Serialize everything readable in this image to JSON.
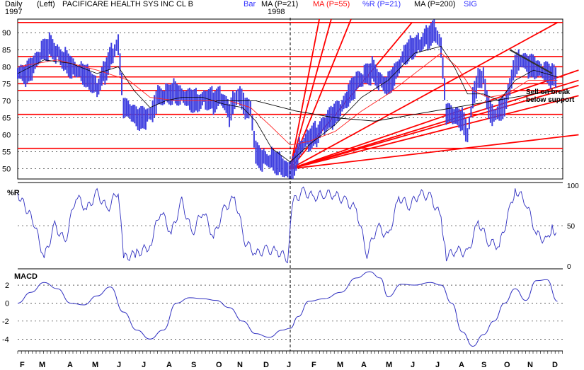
{
  "header": {
    "period": "Daily",
    "axis_side": "(Left)",
    "ticker": "PACIFICARE HEALTH SYS INC CL B",
    "year_start": "1997",
    "year_mid": "1998",
    "legend": [
      {
        "label": "Bar",
        "color": "#3030ff"
      },
      {
        "label": "MA (P=21)",
        "color": "#000000"
      },
      {
        "label": "MA (P=55)",
        "color": "#ff1010"
      },
      {
        "label": "%R (P=21)",
        "color": "#3030ff"
      },
      {
        "label": "MA (P=200)",
        "color": "#000000"
      },
      {
        "label": "SIG",
        "color": "#3030ff"
      }
    ]
  },
  "chart_data": [
    {
      "type": "bar",
      "panel": "price",
      "ylim": [
        47,
        94
      ],
      "yticks": [
        50,
        55,
        60,
        65,
        70,
        75,
        80,
        85,
        90
      ],
      "support_resistance": [
        56,
        66,
        73,
        75,
        77,
        80,
        83,
        93
      ],
      "fan_origin": {
        "x": 10.3,
        "y": 50
      },
      "fan_targets": [
        {
          "x": 11.4,
          "y": 94
        },
        {
          "x": 11.85,
          "y": 94
        },
        {
          "x": 12.6,
          "y": 94
        },
        {
          "x": 14.9,
          "y": 93
        },
        {
          "x": 20.4,
          "y": 93
        },
        {
          "x": 21.2,
          "y": 79
        },
        {
          "x": 21.2,
          "y": 76
        },
        {
          "x": 21.2,
          "y": 74.5
        },
        {
          "x": 21.2,
          "y": 71.5
        },
        {
          "x": 21.2,
          "y": 60
        }
      ],
      "downtrend_line": [
        {
          "x": 18.6,
          "y": 85
        },
        {
          "x": 20.2,
          "y": 78
        }
      ],
      "annotation": "Sell on break\nbelow support",
      "price": [
        [
          0,
          78
        ],
        [
          0.3,
          77
        ],
        [
          0.6,
          80
        ],
        [
          0.9,
          84
        ],
        [
          1.2,
          86
        ],
        [
          1.5,
          84
        ],
        [
          1.8,
          82
        ],
        [
          2.1,
          80
        ],
        [
          2.4,
          79
        ],
        [
          2.7,
          77
        ],
        [
          3.0,
          74
        ],
        [
          3.3,
          79
        ],
        [
          3.6,
          84
        ],
        [
          3.8,
          87
        ],
        [
          4.0,
          68
        ],
        [
          4.3,
          66
        ],
        [
          4.6,
          64
        ],
        [
          4.9,
          65
        ],
        [
          5.1,
          66
        ],
        [
          5.3,
          71
        ],
        [
          5.6,
          72
        ],
        [
          5.9,
          73
        ],
        [
          6.2,
          72
        ],
        [
          6.5,
          71
        ],
        [
          6.8,
          70
        ],
        [
          7.1,
          71
        ],
        [
          7.4,
          70
        ],
        [
          7.7,
          71
        ],
        [
          8.0,
          66
        ],
        [
          8.2,
          70
        ],
        [
          8.4,
          71
        ],
        [
          8.6,
          67
        ],
        [
          8.8,
          67
        ],
        [
          9.0,
          54
        ],
        [
          9.3,
          53
        ],
        [
          9.6,
          53
        ],
        [
          9.9,
          52
        ],
        [
          10.2,
          50
        ],
        [
          10.4,
          51
        ],
        [
          10.7,
          57
        ],
        [
          11.0,
          59
        ],
        [
          11.3,
          60
        ],
        [
          11.6,
          63
        ],
        [
          11.9,
          65
        ],
        [
          12.2,
          67
        ],
        [
          12.5,
          71
        ],
        [
          12.8,
          75
        ],
        [
          13.1,
          77
        ],
        [
          13.4,
          79
        ],
        [
          13.7,
          76
        ],
        [
          14.0,
          75
        ],
        [
          14.3,
          79
        ],
        [
          14.6,
          84
        ],
        [
          14.9,
          86
        ],
        [
          15.2,
          87
        ],
        [
          15.5,
          89
        ],
        [
          15.8,
          90
        ],
        [
          16.0,
          86
        ],
        [
          16.2,
          66
        ],
        [
          16.5,
          65
        ],
        [
          16.8,
          64
        ],
        [
          17.0,
          59
        ],
        [
          17.2,
          70
        ],
        [
          17.4,
          76
        ],
        [
          17.6,
          77
        ],
        [
          17.8,
          68
        ],
        [
          18.0,
          66
        ],
        [
          18.2,
          68
        ],
        [
          18.4,
          69
        ],
        [
          18.6,
          75
        ],
        [
          18.8,
          81
        ],
        [
          19.0,
          82
        ],
        [
          19.3,
          80
        ],
        [
          19.6,
          79
        ],
        [
          19.9,
          78
        ],
        [
          20.2,
          77
        ],
        [
          20.4,
          76
        ]
      ],
      "ma_black_21": [
        [
          0,
          78
        ],
        [
          1,
          82
        ],
        [
          2,
          81
        ],
        [
          3,
          78
        ],
        [
          3.8,
          80
        ],
        [
          4.4,
          73
        ],
        [
          5.0,
          68
        ],
        [
          5.6,
          70
        ],
        [
          6.2,
          71
        ],
        [
          7.0,
          71
        ],
        [
          7.8,
          69
        ],
        [
          8.5,
          68
        ],
        [
          9.0,
          64
        ],
        [
          9.6,
          56
        ],
        [
          10.3,
          52
        ],
        [
          11,
          57
        ],
        [
          12,
          63
        ],
        [
          13,
          71
        ],
        [
          14,
          76
        ],
        [
          15,
          84
        ],
        [
          16,
          86
        ],
        [
          16.5,
          80
        ],
        [
          17,
          72
        ],
        [
          17.6,
          72
        ],
        [
          18.2,
          70
        ],
        [
          18.8,
          76
        ],
        [
          19.5,
          79
        ],
        [
          20.4,
          77
        ]
      ],
      "ma_red_55": [
        [
          0,
          80
        ],
        [
          1.5,
          82
        ],
        [
          3,
          79
        ],
        [
          4.2,
          76
        ],
        [
          5,
          71
        ],
        [
          6,
          70
        ],
        [
          7,
          70
        ],
        [
          8,
          70
        ],
        [
          8.8,
          68
        ],
        [
          9.5,
          63
        ],
        [
          10.3,
          57
        ],
        [
          11,
          58
        ],
        [
          12,
          61
        ],
        [
          13,
          67
        ],
        [
          14,
          72
        ],
        [
          15,
          78
        ],
        [
          16,
          84
        ],
        [
          16.6,
          80
        ],
        [
          17.2,
          73
        ],
        [
          17.8,
          71
        ],
        [
          18.5,
          72
        ],
        [
          19.3,
          76
        ],
        [
          20.4,
          76
        ]
      ],
      "ma_black_200": [
        [
          7.5,
          70
        ],
        [
          9,
          70
        ],
        [
          10.5,
          67
        ],
        [
          12,
          65
        ],
        [
          13.5,
          64
        ],
        [
          15,
          66
        ],
        [
          16.5,
          68
        ],
        [
          18,
          70
        ],
        [
          19.5,
          72
        ],
        [
          20.4,
          73
        ]
      ]
    },
    {
      "type": "line",
      "panel": "%R",
      "title": "%R",
      "ylim": [
        0,
        100
      ],
      "yticks": [
        0,
        50,
        100
      ],
      "values": [
        [
          0,
          90
        ],
        [
          0.6,
          55
        ],
        [
          1.0,
          10
        ],
        [
          1.4,
          50
        ],
        [
          1.8,
          30
        ],
        [
          2.2,
          88
        ],
        [
          2.6,
          70
        ],
        [
          3.0,
          90
        ],
        [
          3.4,
          70
        ],
        [
          3.8,
          95
        ],
        [
          4.0,
          10
        ],
        [
          4.5,
          15
        ],
        [
          5.0,
          25
        ],
        [
          5.4,
          70
        ],
        [
          5.8,
          40
        ],
        [
          6.2,
          80
        ],
        [
          6.6,
          40
        ],
        [
          7.0,
          70
        ],
        [
          7.4,
          35
        ],
        [
          7.8,
          70
        ],
        [
          8.2,
          85
        ],
        [
          8.6,
          30
        ],
        [
          9.0,
          15
        ],
        [
          9.4,
          20
        ],
        [
          9.8,
          18
        ],
        [
          10.2,
          10
        ],
        [
          10.4,
          80
        ],
        [
          10.8,
          92
        ],
        [
          11.2,
          85
        ],
        [
          11.6,
          90
        ],
        [
          12.0,
          88
        ],
        [
          12.4,
          80
        ],
        [
          12.8,
          70
        ],
        [
          13.2,
          15
        ],
        [
          13.6,
          50
        ],
        [
          14.0,
          35
        ],
        [
          14.4,
          85
        ],
        [
          14.8,
          75
        ],
        [
          15.2,
          90
        ],
        [
          15.6,
          85
        ],
        [
          16.0,
          60
        ],
        [
          16.2,
          12
        ],
        [
          16.6,
          20
        ],
        [
          17.0,
          15
        ],
        [
          17.4,
          55
        ],
        [
          17.8,
          30
        ],
        [
          18.2,
          25
        ],
        [
          18.6,
          70
        ],
        [
          18.8,
          95
        ],
        [
          19.2,
          80
        ],
        [
          19.6,
          40
        ],
        [
          20.0,
          30
        ],
        [
          20.2,
          50
        ],
        [
          20.4,
          35
        ]
      ]
    },
    {
      "type": "line",
      "panel": "MACD",
      "title": "MACD",
      "ylim": [
        -5,
        3.5
      ],
      "yticks": [
        -4,
        -2,
        0,
        2
      ],
      "values": [
        [
          0,
          0
        ],
        [
          0.5,
          1.2
        ],
        [
          1,
          2.3
        ],
        [
          1.5,
          1.6
        ],
        [
          2,
          0
        ],
        [
          2.5,
          -0.2
        ],
        [
          3,
          0.8
        ],
        [
          3.5,
          1.8
        ],
        [
          4,
          -1
        ],
        [
          4.5,
          -3
        ],
        [
          5,
          -4
        ],
        [
          5.5,
          -3
        ],
        [
          6,
          0
        ],
        [
          6.5,
          0.6
        ],
        [
          7,
          0.5
        ],
        [
          7.5,
          0.3
        ],
        [
          8,
          -0.5
        ],
        [
          8.5,
          -2
        ],
        [
          9,
          -3.4
        ],
        [
          9.5,
          -3.8
        ],
        [
          10,
          -3
        ],
        [
          10.3,
          -2.8
        ],
        [
          10.6,
          -1.5
        ],
        [
          11,
          0.2
        ],
        [
          11.6,
          0.5
        ],
        [
          12.2,
          1.2
        ],
        [
          12.8,
          2.8
        ],
        [
          13.3,
          3.5
        ],
        [
          13.7,
          2.8
        ],
        [
          14.0,
          0.7
        ],
        [
          14.5,
          2.1
        ],
        [
          15.0,
          2.0
        ],
        [
          15.6,
          2.3
        ],
        [
          16.0,
          2.0
        ],
        [
          16.4,
          0
        ],
        [
          16.8,
          -3.2
        ],
        [
          17.2,
          -4.8
        ],
        [
          17.6,
          -3.5
        ],
        [
          18.0,
          -2
        ],
        [
          18.4,
          0
        ],
        [
          18.8,
          1.6
        ],
        [
          19.2,
          0.3
        ],
        [
          19.6,
          2.5
        ],
        [
          20.0,
          2.6
        ],
        [
          20.4,
          0.2
        ]
      ]
    }
  ],
  "x_axis": {
    "month_labels": [
      "F",
      "M",
      "A",
      "M",
      "J",
      "J",
      "A",
      "S",
      "O",
      "N",
      "D",
      "J",
      "F",
      "M",
      "A",
      "M",
      "J",
      "J",
      "A",
      "S",
      "O",
      "N",
      "D"
    ],
    "month_positions": [
      0,
      1.0,
      1.6,
      2.8,
      3.9,
      5.0,
      5.9,
      6.9,
      8.0,
      9.0,
      9.9,
      10.3,
      11.3,
      12.3,
      13.3,
      14.3,
      15.3,
      16.3,
      17.3,
      18.3,
      19.3,
      18.7,
      19.7
    ]
  },
  "colors": {
    "bars": "#4040e0",
    "ma21": "#000000",
    "ma55": "#ff2020",
    "ma200": "#000000",
    "support": "#ff0000",
    "fan": "#ff0000",
    "indicator": "#3030c0",
    "grid": "#000000",
    "annotation": "#000000"
  }
}
